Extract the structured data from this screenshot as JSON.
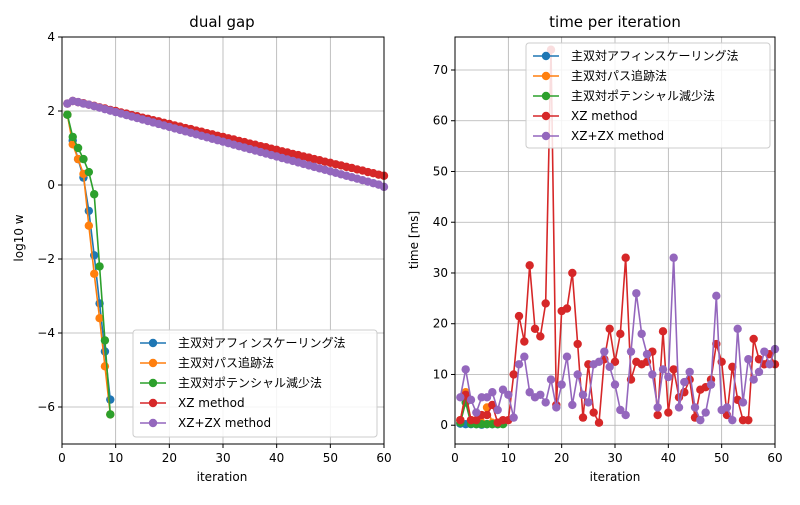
{
  "colors": {
    "s0": "#1f77b4",
    "s1": "#ff7f0e",
    "s2": "#2ca02c",
    "s3": "#d62728",
    "s4": "#9467bd",
    "grid": "#b0b0b0"
  },
  "chart_data": [
    {
      "type": "line",
      "title": "dual gap",
      "xlabel": "iteration",
      "ylabel": "log10 w",
      "xlim": [
        0,
        60
      ],
      "ylim": [
        -7,
        4
      ],
      "xticks": [
        0,
        10,
        20,
        30,
        40,
        50,
        60
      ],
      "xtick_labels": [
        "0",
        "10",
        "20",
        "30",
        "40",
        "50",
        "60"
      ],
      "yticks": [
        -6,
        -4,
        -2,
        0,
        2,
        4
      ],
      "ytick_labels": [
        "−6",
        "−4",
        "−2",
        "0",
        "2",
        "4"
      ],
      "grid": true,
      "legend_position": "lower-right",
      "series": [
        {
          "name": "主双対アフィンスケーリング法",
          "color": "s0",
          "x": [
            1,
            2,
            3,
            4,
            5,
            6,
            7,
            8,
            9
          ],
          "y": [
            1.9,
            1.2,
            0.7,
            0.2,
            -0.7,
            -1.9,
            -3.2,
            -4.5,
            -5.8
          ]
        },
        {
          "name": "主双対パス追跡法",
          "color": "s1",
          "x": [
            1,
            2,
            3,
            4,
            5,
            6,
            7,
            8,
            9
          ],
          "y": [
            1.9,
            1.1,
            0.7,
            0.3,
            -1.1,
            -2.4,
            -3.6,
            -4.9,
            -6.2
          ]
        },
        {
          "name": "主双対ポテンシャル減少法",
          "color": "s2",
          "x": [
            1,
            2,
            3,
            4,
            5,
            6,
            7,
            8,
            9
          ],
          "y": [
            1.9,
            1.3,
            1.0,
            0.7,
            0.35,
            -0.25,
            -2.2,
            -4.2,
            -6.2
          ]
        },
        {
          "name": "XZ method",
          "color": "s3",
          "x": [
            1,
            2,
            3,
            4,
            5,
            6,
            7,
            8,
            9,
            10,
            11,
            12,
            13,
            14,
            15,
            16,
            17,
            18,
            19,
            20,
            21,
            22,
            23,
            24,
            25,
            26,
            27,
            28,
            29,
            30,
            31,
            32,
            33,
            34,
            35,
            36,
            37,
            38,
            39,
            40,
            41,
            42,
            43,
            44,
            45,
            46,
            47,
            48,
            49,
            50,
            51,
            52,
            53,
            54,
            55,
            56,
            57,
            58,
            59,
            60
          ],
          "y": [
            2.2,
            2.27,
            2.24,
            2.21,
            2.17,
            2.14,
            2.1,
            2.07,
            2.03,
            2.0,
            1.96,
            1.93,
            1.89,
            1.86,
            1.82,
            1.79,
            1.75,
            1.72,
            1.68,
            1.65,
            1.61,
            1.58,
            1.54,
            1.51,
            1.47,
            1.44,
            1.4,
            1.37,
            1.33,
            1.3,
            1.26,
            1.23,
            1.19,
            1.16,
            1.12,
            1.09,
            1.05,
            1.02,
            0.98,
            0.95,
            0.91,
            0.88,
            0.84,
            0.81,
            0.77,
            0.74,
            0.7,
            0.67,
            0.63,
            0.6,
            0.56,
            0.53,
            0.49,
            0.46,
            0.42,
            0.39,
            0.35,
            0.32,
            0.28,
            0.25
          ]
        },
        {
          "name": "XZ+ZX method",
          "color": "s4",
          "x": [
            1,
            2,
            3,
            4,
            5,
            6,
            7,
            8,
            9,
            10,
            11,
            12,
            13,
            14,
            15,
            16,
            17,
            18,
            19,
            20,
            21,
            22,
            23,
            24,
            25,
            26,
            27,
            28,
            29,
            30,
            31,
            32,
            33,
            34,
            35,
            36,
            37,
            38,
            39,
            40,
            41,
            42,
            43,
            44,
            45,
            46,
            47,
            48,
            49,
            50,
            51,
            52,
            53,
            54,
            55,
            56,
            57,
            58,
            59,
            60
          ],
          "y": [
            2.2,
            2.27,
            2.24,
            2.2,
            2.17,
            2.13,
            2.09,
            2.05,
            2.01,
            1.97,
            1.93,
            1.89,
            1.85,
            1.81,
            1.77,
            1.73,
            1.69,
            1.65,
            1.61,
            1.57,
            1.53,
            1.49,
            1.45,
            1.41,
            1.37,
            1.33,
            1.29,
            1.25,
            1.21,
            1.17,
            1.13,
            1.09,
            1.05,
            1.01,
            0.97,
            0.93,
            0.89,
            0.85,
            0.81,
            0.77,
            0.73,
            0.69,
            0.65,
            0.61,
            0.57,
            0.53,
            0.49,
            0.45,
            0.41,
            0.37,
            0.33,
            0.29,
            0.25,
            0.21,
            0.17,
            0.13,
            0.09,
            0.05,
            0.01,
            -0.05
          ]
        }
      ]
    },
    {
      "type": "line",
      "title": "time per iteration",
      "xlabel": "iteration",
      "ylabel": "time [ms]",
      "xlim": [
        0,
        60
      ],
      "ylim": [
        -3.7,
        76.5
      ],
      "xticks": [
        0,
        10,
        20,
        30,
        40,
        50,
        60
      ],
      "xtick_labels": [
        "0",
        "10",
        "20",
        "30",
        "40",
        "50",
        "60"
      ],
      "yticks": [
        0,
        10,
        20,
        30,
        40,
        50,
        60,
        70
      ],
      "ytick_labels": [
        "0",
        "10",
        "20",
        "30",
        "40",
        "50",
        "60",
        "70"
      ],
      "grid": true,
      "legend_position": "upper-right",
      "series": [
        {
          "name": "主双対アフィンスケーリング法",
          "color": "s0",
          "x": [
            1,
            2,
            3,
            4,
            5,
            6,
            7,
            8,
            9
          ],
          "y": [
            0.3,
            0.2,
            0.2,
            0.2,
            0.1,
            0.2,
            0.2,
            0.2,
            0.3
          ]
        },
        {
          "name": "主双対パス追跡法",
          "color": "s1",
          "x": [
            1,
            2,
            3,
            4,
            5,
            6,
            7,
            8,
            9
          ],
          "y": [
            1.0,
            6.5,
            1.0,
            0.5,
            0.5,
            3.5,
            0.5,
            0.5,
            0.3
          ]
        },
        {
          "name": "主双対ポテンシャル減少法",
          "color": "s2",
          "x": [
            1,
            2,
            3,
            4,
            5,
            6,
            7,
            8,
            9
          ],
          "y": [
            0.5,
            4.5,
            0.3,
            0.2,
            0.2,
            0.2,
            0.2,
            0.2,
            0.2
          ]
        },
        {
          "name": "XZ method",
          "color": "s3",
          "x": [
            1,
            2,
            3,
            4,
            5,
            6,
            7,
            8,
            9,
            10,
            11,
            12,
            13,
            14,
            15,
            16,
            17,
            18,
            19,
            20,
            21,
            22,
            23,
            24,
            25,
            26,
            27,
            28,
            29,
            30,
            31,
            32,
            33,
            34,
            35,
            36,
            37,
            38,
            39,
            40,
            41,
            42,
            43,
            44,
            45,
            46,
            47,
            48,
            49,
            50,
            51,
            52,
            53,
            54,
            55,
            56,
            57,
            58,
            59,
            60
          ],
          "y": [
            1.0,
            6.0,
            1.0,
            1.0,
            2.0,
            2.0,
            4.0,
            0.5,
            1.0,
            1.0,
            10.0,
            21.5,
            16.5,
            31.5,
            19.0,
            17.5,
            24.0,
            74.0,
            4.0,
            22.5,
            23.0,
            30.0,
            16.0,
            1.5,
            12.0,
            2.5,
            0.5,
            13.0,
            19.0,
            12.5,
            18.0,
            33.0,
            9.0,
            12.5,
            12.0,
            12.5,
            14.5,
            2.0,
            18.5,
            2.5,
            11.0,
            5.5,
            6.5,
            9.0,
            1.5,
            7.0,
            7.5,
            9.0,
            16.0,
            12.5,
            2.0,
            11.5,
            5.0,
            1.0,
            1.0,
            17.0,
            13.0,
            12.0,
            14.0,
            12.0
          ]
        },
        {
          "name": "XZ+ZX method",
          "color": "s4",
          "x": [
            1,
            2,
            3,
            4,
            5,
            6,
            7,
            8,
            9,
            10,
            11,
            12,
            13,
            14,
            15,
            16,
            17,
            18,
            19,
            20,
            21,
            22,
            23,
            24,
            25,
            26,
            27,
            28,
            29,
            30,
            31,
            32,
            33,
            34,
            35,
            36,
            37,
            38,
            39,
            40,
            41,
            42,
            43,
            44,
            45,
            46,
            47,
            48,
            49,
            50,
            51,
            52,
            53,
            54,
            55,
            56,
            57,
            58,
            59,
            60
          ],
          "y": [
            5.5,
            11.0,
            5.0,
            2.5,
            5.5,
            5.5,
            6.5,
            3.0,
            7.0,
            6.0,
            1.5,
            12.0,
            13.5,
            6.5,
            5.5,
            6.0,
            4.5,
            9.0,
            3.5,
            8.0,
            13.5,
            4.0,
            10.0,
            6.0,
            4.5,
            12.0,
            12.5,
            14.5,
            11.5,
            8.0,
            3.0,
            2.0,
            14.5,
            26.0,
            18.0,
            14.0,
            10.0,
            3.5,
            11.0,
            9.5,
            33.0,
            3.5,
            8.5,
            10.5,
            3.5,
            1.0,
            2.5,
            8.0,
            25.5,
            3.0,
            3.5,
            1.0,
            19.0,
            4.5,
            13.0,
            9.0,
            10.5,
            14.5,
            12.0,
            15.0
          ]
        }
      ]
    }
  ]
}
